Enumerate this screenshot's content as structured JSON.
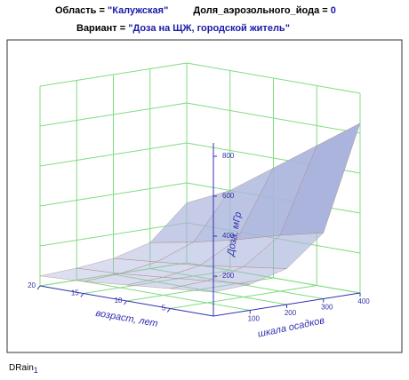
{
  "header": {
    "region_label": "Область = ",
    "region_value": "\"Калужская\"",
    "iodine_label": "Доля_аэрозольного_йода = ",
    "iodine_value": "0",
    "variant_label": "Вариант = ",
    "variant_value": "\"Доза на ЩЖ, городской житель\""
  },
  "chart_data": {
    "type": "surface",
    "x_label": "возраст, лет",
    "y_label": "шкала осадков",
    "z_label": "Доза, мГр",
    "x": [
      0,
      5,
      10,
      15,
      20
    ],
    "y": [
      0,
      100,
      200,
      300,
      400
    ],
    "z": [
      [
        120,
        130,
        180,
        330,
        850
      ],
      [
        100,
        110,
        150,
        280,
        700
      ],
      [
        80,
        90,
        120,
        220,
        550
      ],
      [
        60,
        70,
        100,
        170,
        400
      ],
      [
        50,
        60,
        80,
        130,
        300
      ]
    ],
    "xlim": [
      0,
      20
    ],
    "ylim": [
      0,
      400
    ],
    "zlim": [
      0,
      1000
    ],
    "xticks": [
      5,
      10,
      15,
      20
    ],
    "yticks": [
      100,
      200,
      300,
      400
    ],
    "zticks": [
      200,
      400,
      600,
      800
    ],
    "color": "#aab4dc",
    "grid_color": "#80dc80"
  },
  "footer": {
    "name": "DRain",
    "subscript": "1"
  }
}
